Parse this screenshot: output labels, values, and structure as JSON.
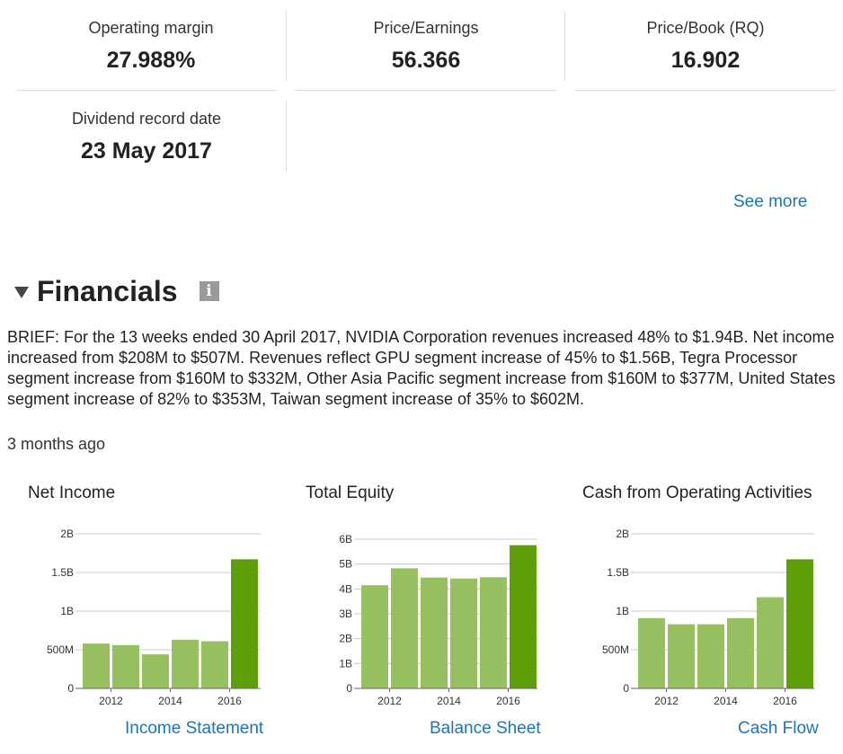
{
  "stats": [
    {
      "label": "Operating margin",
      "value": "27.988%"
    },
    {
      "label": "Price/Earnings",
      "value": "56.366"
    },
    {
      "label": "Price/Book (RQ)",
      "value": "16.902"
    },
    {
      "label": "Dividend record date",
      "value": "23 May 2017"
    }
  ],
  "see_more": "See more",
  "financials": {
    "title": "Financials",
    "info_icon": "info-icon",
    "brief": "BRIEF: For the 13 weeks ended 30 April 2017, NVIDIA Corporation revenues increased 48% to $1.94B. Net income increased from $208M to $507M. Revenues reflect GPU segment increase of 45% to $1.56B, Tegra Processor segment increase from $160M to $332M, Other Asia Pacific segment increase from $160M to $377M, United States segment increase of 82% to $353M, Taiwan segment increase of 35% to $602M.",
    "updated": "3 months ago"
  },
  "colors": {
    "bar": "#97c160",
    "bar_highlight": "#5e9e08",
    "link": "#1f73b7",
    "grid": "#cccccc"
  },
  "chart_data": [
    {
      "type": "bar",
      "title": "Net Income",
      "link": "Income Statement",
      "categories": [
        "2011",
        "2012",
        "2013",
        "2014",
        "2015",
        "2016"
      ],
      "x_tick_labels": [
        "2012",
        "2014",
        "2016"
      ],
      "values": [
        0.58,
        0.56,
        0.44,
        0.63,
        0.61,
        1.67
      ],
      "unit": "B",
      "highlight_last": true,
      "ylim": [
        0,
        2
      ],
      "yticks": [
        {
          "v": 0,
          "label": "0"
        },
        {
          "v": 0.5,
          "label": "500M"
        },
        {
          "v": 1,
          "label": "1B"
        },
        {
          "v": 1.5,
          "label": "1.5B"
        },
        {
          "v": 2,
          "label": "2B"
        }
      ],
      "grid": true
    },
    {
      "type": "bar",
      "title": "Total Equity",
      "link": "Balance Sheet",
      "categories": [
        "2011",
        "2012",
        "2013",
        "2014",
        "2015",
        "2016"
      ],
      "x_tick_labels": [
        "2012",
        "2014",
        "2016"
      ],
      "values": [
        4.15,
        4.83,
        4.46,
        4.42,
        4.47,
        5.76
      ],
      "unit": "B",
      "highlight_last": true,
      "ylim": [
        0,
        6
      ],
      "yticks": [
        {
          "v": 0,
          "label": "0"
        },
        {
          "v": 1,
          "label": "1B"
        },
        {
          "v": 2,
          "label": "2B"
        },
        {
          "v": 3,
          "label": "3B"
        },
        {
          "v": 4,
          "label": "4B"
        },
        {
          "v": 5,
          "label": "5B"
        },
        {
          "v": 6,
          "label": "6B"
        }
      ],
      "grid": true
    },
    {
      "type": "bar",
      "title": "Cash from Operating Activities",
      "link": "Cash Flow",
      "categories": [
        "2011",
        "2012",
        "2013",
        "2014",
        "2015",
        "2016"
      ],
      "x_tick_labels": [
        "2012",
        "2014",
        "2016"
      ],
      "values": [
        0.91,
        0.83,
        0.83,
        0.91,
        1.18,
        1.67
      ],
      "unit": "B",
      "highlight_last": true,
      "ylim": [
        0,
        2
      ],
      "yticks": [
        {
          "v": 0,
          "label": "0"
        },
        {
          "v": 0.5,
          "label": "500M"
        },
        {
          "v": 1,
          "label": "1B"
        },
        {
          "v": 1.5,
          "label": "1.5B"
        },
        {
          "v": 2,
          "label": "2B"
        }
      ],
      "grid": true
    }
  ]
}
